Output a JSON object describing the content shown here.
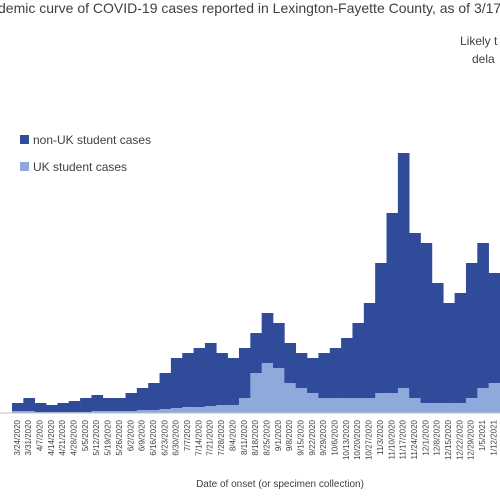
{
  "chart_data": {
    "type": "stacked-bar",
    "title": "demic curve of COVID-19 cases reported in Lexington-Fayette County, as of 3/17",
    "annotation": [
      "Likely t",
      "dela"
    ],
    "xlabel": "Date of onset (or specimen collection)",
    "categories": [
      "3/24/2020",
      "3/31/2020",
      "4/7/2020",
      "4/14/2020",
      "4/21/2020",
      "4/28/2020",
      "5/5/2020",
      "5/12/2020",
      "5/19/2020",
      "5/26/2020",
      "6/2/2020",
      "6/9/2020",
      "6/16/2020",
      "6/23/2020",
      "6/30/2020",
      "7/7/2020",
      "7/14/2020",
      "7/21/2020",
      "7/28/2020",
      "8/4/2020",
      "8/11/2020",
      "8/18/2020",
      "8/25/2020",
      "9/1/2020",
      "9/8/2020",
      "9/15/2020",
      "9/22/2020",
      "9/29/2020",
      "10/6/2020",
      "10/13/2020",
      "10/20/2020",
      "10/27/2020",
      "11/3/2020",
      "11/10/2020",
      "11/17/2020",
      "11/24/2020",
      "12/1/2020",
      "12/8/2020",
      "12/15/2020",
      "12/22/2020",
      "12/29/2020",
      "1/5/2021",
      "1/12/2021"
    ],
    "series": [
      {
        "name": "non-UK student cases",
        "color": "#2f4b9a",
        "values": [
          8,
          13,
          9,
          7,
          9,
          11,
          14,
          16,
          13,
          13,
          18,
          22,
          27,
          36,
          50,
          54,
          59,
          63,
          52,
          47,
          50,
          40,
          50,
          45,
          40,
          35,
          35,
          45,
          50,
          60,
          75,
          95,
          130,
          180,
          235,
          165,
          160,
          120,
          100,
          110,
          135,
          145,
          110
        ]
      },
      {
        "name": "UK student cases",
        "color": "#8fa9dc",
        "values": [
          2,
          2,
          1,
          1,
          1,
          1,
          1,
          2,
          2,
          2,
          2,
          3,
          3,
          4,
          5,
          6,
          6,
          7,
          8,
          8,
          15,
          40,
          50,
          45,
          30,
          25,
          20,
          15,
          15,
          15,
          15,
          15,
          20,
          20,
          25,
          15,
          10,
          10,
          10,
          10,
          15,
          25,
          30
        ]
      }
    ],
    "ylim": [
      0,
      350
    ]
  }
}
